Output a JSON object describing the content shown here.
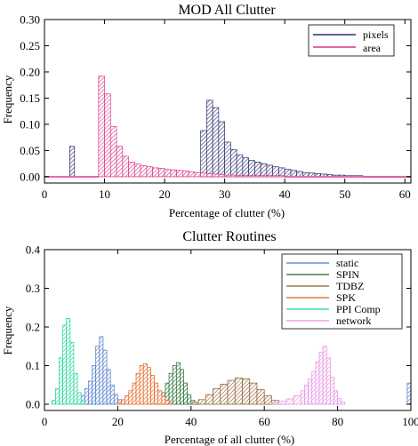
{
  "chart_data": [
    {
      "type": "histogram",
      "title": "MOD All Clutter",
      "xlabel": "Percentage of clutter (%)",
      "ylabel": "Frequency",
      "xlim": [
        0,
        61
      ],
      "ylim": [
        -0.012,
        0.3
      ],
      "x_ticks": [
        0,
        10,
        20,
        30,
        40,
        50,
        60
      ],
      "y_ticks": [
        0.0,
        0.05,
        0.1,
        0.15,
        0.2,
        0.25,
        0.3
      ],
      "y_tick_labels": [
        "0.00",
        "0.05",
        "0.10",
        "0.15",
        "0.20",
        "0.25",
        "0.30"
      ],
      "legend_position": "top-right",
      "series": [
        {
          "name": "pixels",
          "color": "#2b2f6b",
          "bins": [
            {
              "x0": 4.2,
              "x1": 5.0,
              "y": 0.058
            },
            {
              "x0": 26.0,
              "x1": 27.0,
              "y": 0.088
            },
            {
              "x0": 27.0,
              "x1": 28.0,
              "y": 0.146
            },
            {
              "x0": 28.0,
              "x1": 29.0,
              "y": 0.132
            },
            {
              "x0": 29.0,
              "x1": 30.0,
              "y": 0.105
            },
            {
              "x0": 30.0,
              "x1": 31.0,
              "y": 0.066
            },
            {
              "x0": 31.0,
              "x1": 32.0,
              "y": 0.052
            },
            {
              "x0": 32.0,
              "x1": 33.0,
              "y": 0.042
            },
            {
              "x0": 33.0,
              "x1": 34.0,
              "y": 0.036
            },
            {
              "x0": 34.0,
              "x1": 35.0,
              "y": 0.031
            },
            {
              "x0": 35.0,
              "x1": 36.0,
              "y": 0.028
            },
            {
              "x0": 36.0,
              "x1": 37.0,
              "y": 0.025
            },
            {
              "x0": 37.0,
              "x1": 38.0,
              "y": 0.022
            },
            {
              "x0": 38.0,
              "x1": 39.0,
              "y": 0.019
            },
            {
              "x0": 39.0,
              "x1": 40.0,
              "y": 0.017
            },
            {
              "x0": 40.0,
              "x1": 41.0,
              "y": 0.014
            },
            {
              "x0": 41.0,
              "x1": 42.0,
              "y": 0.012
            },
            {
              "x0": 42.0,
              "x1": 43.0,
              "y": 0.01
            },
            {
              "x0": 43.0,
              "x1": 44.0,
              "y": 0.008
            },
            {
              "x0": 44.0,
              "x1": 45.0,
              "y": 0.007
            },
            {
              "x0": 45.0,
              "x1": 46.0,
              "y": 0.006
            },
            {
              "x0": 46.0,
              "x1": 47.0,
              "y": 0.005
            },
            {
              "x0": 47.0,
              "x1": 48.0,
              "y": 0.004
            },
            {
              "x0": 48.0,
              "x1": 49.0,
              "y": 0.003
            },
            {
              "x0": 49.0,
              "x1": 50.0,
              "y": 0.003
            },
            {
              "x0": 50.0,
              "x1": 51.0,
              "y": 0.002
            },
            {
              "x0": 51.0,
              "x1": 53.0,
              "y": 0.002
            },
            {
              "x0": 53.0,
              "x1": 55.0,
              "y": 0.001
            },
            {
              "x0": 55.0,
              "x1": 58.0,
              "y": 0.001
            },
            {
              "x0": 58.0,
              "x1": 61.0,
              "y": 0.001
            }
          ]
        },
        {
          "name": "area",
          "color": "#d9358a",
          "bins": [
            {
              "x0": 0.0,
              "x1": 9.0,
              "y": 0.001
            },
            {
              "x0": 9.0,
              "x1": 10.0,
              "y": 0.192
            },
            {
              "x0": 10.0,
              "x1": 11.0,
              "y": 0.158
            },
            {
              "x0": 11.0,
              "x1": 12.0,
              "y": 0.096
            },
            {
              "x0": 12.0,
              "x1": 13.0,
              "y": 0.058
            },
            {
              "x0": 13.0,
              "x1": 14.0,
              "y": 0.039
            },
            {
              "x0": 14.0,
              "x1": 15.0,
              "y": 0.028
            },
            {
              "x0": 15.0,
              "x1": 16.0,
              "y": 0.024
            },
            {
              "x0": 16.0,
              "x1": 17.0,
              "y": 0.021
            },
            {
              "x0": 17.0,
              "x1": 18.0,
              "y": 0.019
            },
            {
              "x0": 18.0,
              "x1": 19.0,
              "y": 0.017
            },
            {
              "x0": 19.0,
              "x1": 20.0,
              "y": 0.016
            },
            {
              "x0": 20.0,
              "x1": 21.0,
              "y": 0.014
            },
            {
              "x0": 21.0,
              "x1": 22.0,
              "y": 0.013
            },
            {
              "x0": 22.0,
              "x1": 23.0,
              "y": 0.012
            },
            {
              "x0": 23.0,
              "x1": 24.0,
              "y": 0.011
            },
            {
              "x0": 24.0,
              "x1": 25.0,
              "y": 0.009
            },
            {
              "x0": 25.0,
              "x1": 26.0,
              "y": 0.008
            },
            {
              "x0": 26.0,
              "x1": 27.0,
              "y": 0.007
            },
            {
              "x0": 27.0,
              "x1": 28.0,
              "y": 0.006
            },
            {
              "x0": 28.0,
              "x1": 29.0,
              "y": 0.005
            },
            {
              "x0": 29.0,
              "x1": 30.0,
              "y": 0.004
            },
            {
              "x0": 30.0,
              "x1": 32.0,
              "y": 0.003
            },
            {
              "x0": 32.0,
              "x1": 40.0,
              "y": 0.002
            },
            {
              "x0": 40.0,
              "x1": 61.0,
              "y": 0.001
            }
          ]
        }
      ]
    },
    {
      "type": "histogram",
      "title": "Clutter Routines",
      "xlabel": "Percentage of all clutter (%)",
      "ylabel": "Frequency",
      "xlim": [
        0,
        100
      ],
      "ylim": [
        -0.016,
        0.4
      ],
      "x_ticks": [
        0,
        20,
        40,
        60,
        80,
        100
      ],
      "y_ticks": [
        0.0,
        0.1,
        0.2,
        0.3,
        0.4
      ],
      "y_tick_labels": [
        "0.0",
        "0.1",
        "0.2",
        "0.3",
        "0.4"
      ],
      "legend_position": "top-right",
      "series": [
        {
          "name": "static",
          "color": "#4a76c8",
          "bins": [
            {
              "x0": 8,
              "x1": 9,
              "y": 0.004
            },
            {
              "x0": 9,
              "x1": 10,
              "y": 0.01
            },
            {
              "x0": 10,
              "x1": 11,
              "y": 0.022
            },
            {
              "x0": 11,
              "x1": 12,
              "y": 0.04
            },
            {
              "x0": 12,
              "x1": 13,
              "y": 0.06
            },
            {
              "x0": 13,
              "x1": 14,
              "y": 0.1
            },
            {
              "x0": 14,
              "x1": 15,
              "y": 0.15
            },
            {
              "x0": 15,
              "x1": 16,
              "y": 0.175
            },
            {
              "x0": 16,
              "x1": 17,
              "y": 0.14
            },
            {
              "x0": 17,
              "x1": 18,
              "y": 0.09
            },
            {
              "x0": 18,
              "x1": 19,
              "y": 0.05
            },
            {
              "x0": 19,
              "x1": 20,
              "y": 0.025
            },
            {
              "x0": 20,
              "x1": 21,
              "y": 0.012
            },
            {
              "x0": 21,
              "x1": 22,
              "y": 0.005
            },
            {
              "x0": 99,
              "x1": 100,
              "y": 0.055
            }
          ]
        },
        {
          "name": "SPIN",
          "color": "#1f6b2a",
          "bins": [
            {
              "x0": 30,
              "x1": 31,
              "y": 0.005
            },
            {
              "x0": 31,
              "x1": 32,
              "y": 0.012
            },
            {
              "x0": 32,
              "x1": 33,
              "y": 0.03
            },
            {
              "x0": 33,
              "x1": 34,
              "y": 0.055
            },
            {
              "x0": 34,
              "x1": 35,
              "y": 0.08
            },
            {
              "x0": 35,
              "x1": 36,
              "y": 0.1
            },
            {
              "x0": 36,
              "x1": 37,
              "y": 0.108
            },
            {
              "x0": 37,
              "x1": 38,
              "y": 0.09
            },
            {
              "x0": 38,
              "x1": 39,
              "y": 0.055
            },
            {
              "x0": 39,
              "x1": 40,
              "y": 0.025
            },
            {
              "x0": 40,
              "x1": 41,
              "y": 0.01
            },
            {
              "x0": 41,
              "x1": 42,
              "y": 0.004
            }
          ]
        },
        {
          "name": "TDBZ",
          "color": "#8a5a2b",
          "bins": [
            {
              "x0": 40,
              "x1": 42,
              "y": 0.005
            },
            {
              "x0": 42,
              "x1": 44,
              "y": 0.012
            },
            {
              "x0": 44,
              "x1": 46,
              "y": 0.025
            },
            {
              "x0": 46,
              "x1": 48,
              "y": 0.04
            },
            {
              "x0": 48,
              "x1": 50,
              "y": 0.052
            },
            {
              "x0": 50,
              "x1": 52,
              "y": 0.062
            },
            {
              "x0": 52,
              "x1": 54,
              "y": 0.068
            },
            {
              "x0": 54,
              "x1": 56,
              "y": 0.066
            },
            {
              "x0": 56,
              "x1": 58,
              "y": 0.055
            },
            {
              "x0": 58,
              "x1": 60,
              "y": 0.038
            },
            {
              "x0": 60,
              "x1": 62,
              "y": 0.022
            },
            {
              "x0": 62,
              "x1": 64,
              "y": 0.01
            },
            {
              "x0": 64,
              "x1": 66,
              "y": 0.004
            }
          ]
        },
        {
          "name": "SPK",
          "color": "#e0601a",
          "bins": [
            {
              "x0": 20,
              "x1": 21,
              "y": 0.005
            },
            {
              "x0": 21,
              "x1": 22,
              "y": 0.012
            },
            {
              "x0": 22,
              "x1": 23,
              "y": 0.022
            },
            {
              "x0": 23,
              "x1": 24,
              "y": 0.035
            },
            {
              "x0": 24,
              "x1": 25,
              "y": 0.055
            },
            {
              "x0": 25,
              "x1": 26,
              "y": 0.08
            },
            {
              "x0": 26,
              "x1": 27,
              "y": 0.1
            },
            {
              "x0": 27,
              "x1": 28,
              "y": 0.105
            },
            {
              "x0": 28,
              "x1": 29,
              "y": 0.095
            },
            {
              "x0": 29,
              "x1": 30,
              "y": 0.075
            },
            {
              "x0": 30,
              "x1": 31,
              "y": 0.055
            },
            {
              "x0": 31,
              "x1": 32,
              "y": 0.035
            },
            {
              "x0": 32,
              "x1": 33,
              "y": 0.02
            },
            {
              "x0": 33,
              "x1": 34,
              "y": 0.01
            },
            {
              "x0": 34,
              "x1": 35,
              "y": 0.004
            }
          ]
        },
        {
          "name": "PPI Comp",
          "color": "#18d39a",
          "bins": [
            {
              "x0": 2,
              "x1": 3,
              "y": 0.01
            },
            {
              "x0": 3,
              "x1": 4,
              "y": 0.04
            },
            {
              "x0": 4,
              "x1": 5,
              "y": 0.12
            },
            {
              "x0": 5,
              "x1": 6,
              "y": 0.205
            },
            {
              "x0": 6,
              "x1": 7,
              "y": 0.222
            },
            {
              "x0": 7,
              "x1": 8,
              "y": 0.16
            },
            {
              "x0": 8,
              "x1": 9,
              "y": 0.08
            },
            {
              "x0": 9,
              "x1": 10,
              "y": 0.03
            },
            {
              "x0": 10,
              "x1": 11,
              "y": 0.008
            }
          ]
        },
        {
          "name": "network",
          "color": "#e38ee0",
          "bins": [
            {
              "x0": 62,
              "x1": 64,
              "y": 0.004
            },
            {
              "x0": 64,
              "x1": 66,
              "y": 0.008
            },
            {
              "x0": 66,
              "x1": 68,
              "y": 0.014
            },
            {
              "x0": 68,
              "x1": 70,
              "y": 0.022
            },
            {
              "x0": 70,
              "x1": 71,
              "y": 0.035
            },
            {
              "x0": 71,
              "x1": 72,
              "y": 0.05
            },
            {
              "x0": 72,
              "x1": 73,
              "y": 0.065
            },
            {
              "x0": 73,
              "x1": 74,
              "y": 0.085
            },
            {
              "x0": 74,
              "x1": 75,
              "y": 0.11
            },
            {
              "x0": 75,
              "x1": 76,
              "y": 0.135
            },
            {
              "x0": 76,
              "x1": 77,
              "y": 0.15
            },
            {
              "x0": 77,
              "x1": 78,
              "y": 0.12
            },
            {
              "x0": 78,
              "x1": 79,
              "y": 0.07
            },
            {
              "x0": 79,
              "x1": 80,
              "y": 0.035
            },
            {
              "x0": 80,
              "x1": 81,
              "y": 0.015
            },
            {
              "x0": 81,
              "x1": 82,
              "y": 0.006
            }
          ]
        }
      ]
    }
  ]
}
